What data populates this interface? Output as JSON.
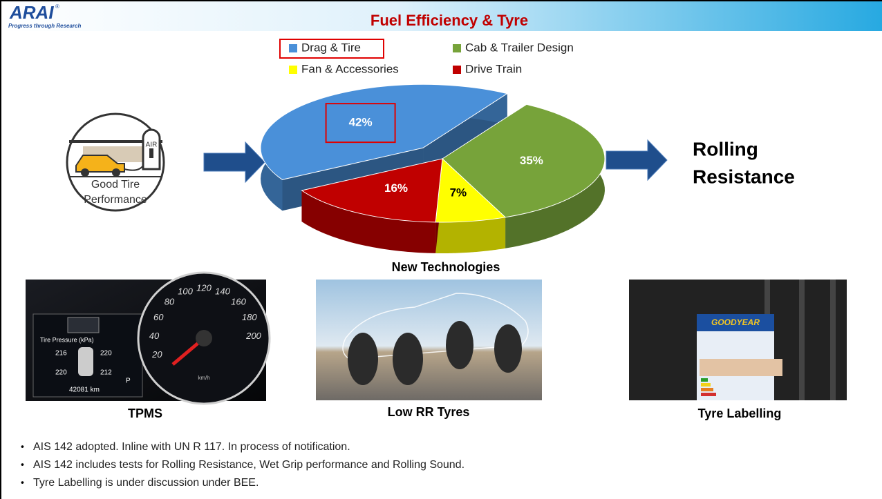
{
  "logo": {
    "name": "ARAI",
    "mark": "®",
    "tagline": "Progress through Research"
  },
  "header": {
    "title": "Fuel Efficiency & Tyre"
  },
  "chart_data": {
    "type": "pie",
    "categories": [
      "Drag & Tire",
      "Cab & Trailer Design",
      "Fan & Accessories",
      "Drive Train"
    ],
    "values": [
      42,
      35,
      7,
      16
    ],
    "value_labels": [
      "42%",
      "35%",
      "7%",
      "16%"
    ],
    "colors": [
      "#4a90d9",
      "#77a33a",
      "#ffff00",
      "#c00000"
    ],
    "caption": "New Technologies"
  },
  "icon": {
    "sign": "AIR",
    "lines": [
      "Good Tire",
      "Performance"
    ]
  },
  "result": {
    "lines": [
      "Rolling",
      "Resistance"
    ]
  },
  "dashboard": {
    "title": "Tire Pressure (kPa)",
    "pressures": [
      "216",
      "220",
      "220",
      "212"
    ],
    "odometer": "42081 km",
    "gear": "P",
    "speeds": [
      "20",
      "40",
      "60",
      "80",
      "100",
      "120",
      "140",
      "160",
      "180",
      "200"
    ],
    "unit": "km/h"
  },
  "tyre_brand": "GOODYEAR",
  "panels": [
    "TPMS",
    "Low RR Tyres",
    "Tyre Labelling"
  ],
  "bullets": [
    "AIS 142 adopted. Inline with UN R 117. In process of notification.",
    "AIS 142 includes tests for Rolling Resistance, Wet Grip performance and Rolling Sound.",
    "Tyre Labelling is under discussion under BEE."
  ]
}
